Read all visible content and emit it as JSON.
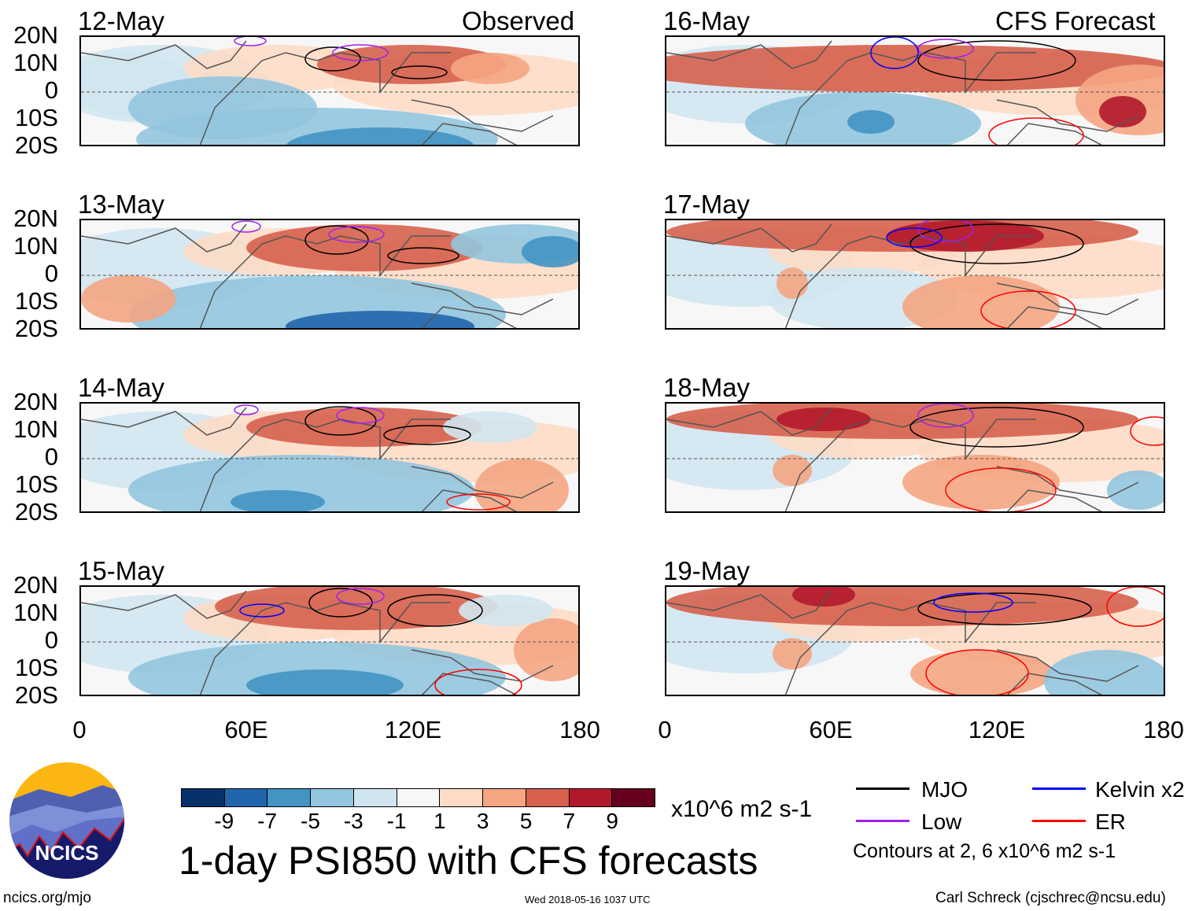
{
  "figure_title": "1-day PSI850 with CFS forecasts",
  "observed_label": "Observed",
  "forecast_label": "CFS Forecast",
  "panels_left": [
    {
      "date": "12-May"
    },
    {
      "date": "13-May"
    },
    {
      "date": "14-May"
    },
    {
      "date": "15-May"
    }
  ],
  "panels_right": [
    {
      "date": "16-May"
    },
    {
      "date": "17-May"
    },
    {
      "date": "18-May"
    },
    {
      "date": "19-May"
    }
  ],
  "lat_ticks": [
    "20N",
    "10N",
    "0",
    "10S",
    "20S"
  ],
  "lon_ticks": [
    "0",
    "60E",
    "120E",
    "180"
  ],
  "colorbar": {
    "colors": [
      "#08306b",
      "#2166ac",
      "#4393c3",
      "#92c5de",
      "#d1e5f0",
      "#f7f7f7",
      "#fddbc7",
      "#f4a582",
      "#d6604d",
      "#b2182b",
      "#67001f"
    ],
    "labels": [
      "-9",
      "-7",
      "-5",
      "-3",
      "-1",
      "1",
      "3",
      "5",
      "7",
      "9"
    ],
    "units": "x10^6 m2 s-1"
  },
  "legend": {
    "items": [
      {
        "label": "MJO",
        "color": "#000000"
      },
      {
        "label": "Kelvin x2",
        "color": "#0000ff"
      },
      {
        "label": "Low",
        "color": "#a020f0"
      },
      {
        "label": "ER",
        "color": "#ff0000"
      }
    ],
    "contours_note": "Contours at 2, 6 x10^6 m2 s-1"
  },
  "logo_text": "NCICS",
  "footer": {
    "url": "ncics.org/mjo",
    "timestamp": "Wed 2018-05-16 1037 UTC",
    "author": "Carl Schreck (cjschrec@ncsu.edu)"
  }
}
